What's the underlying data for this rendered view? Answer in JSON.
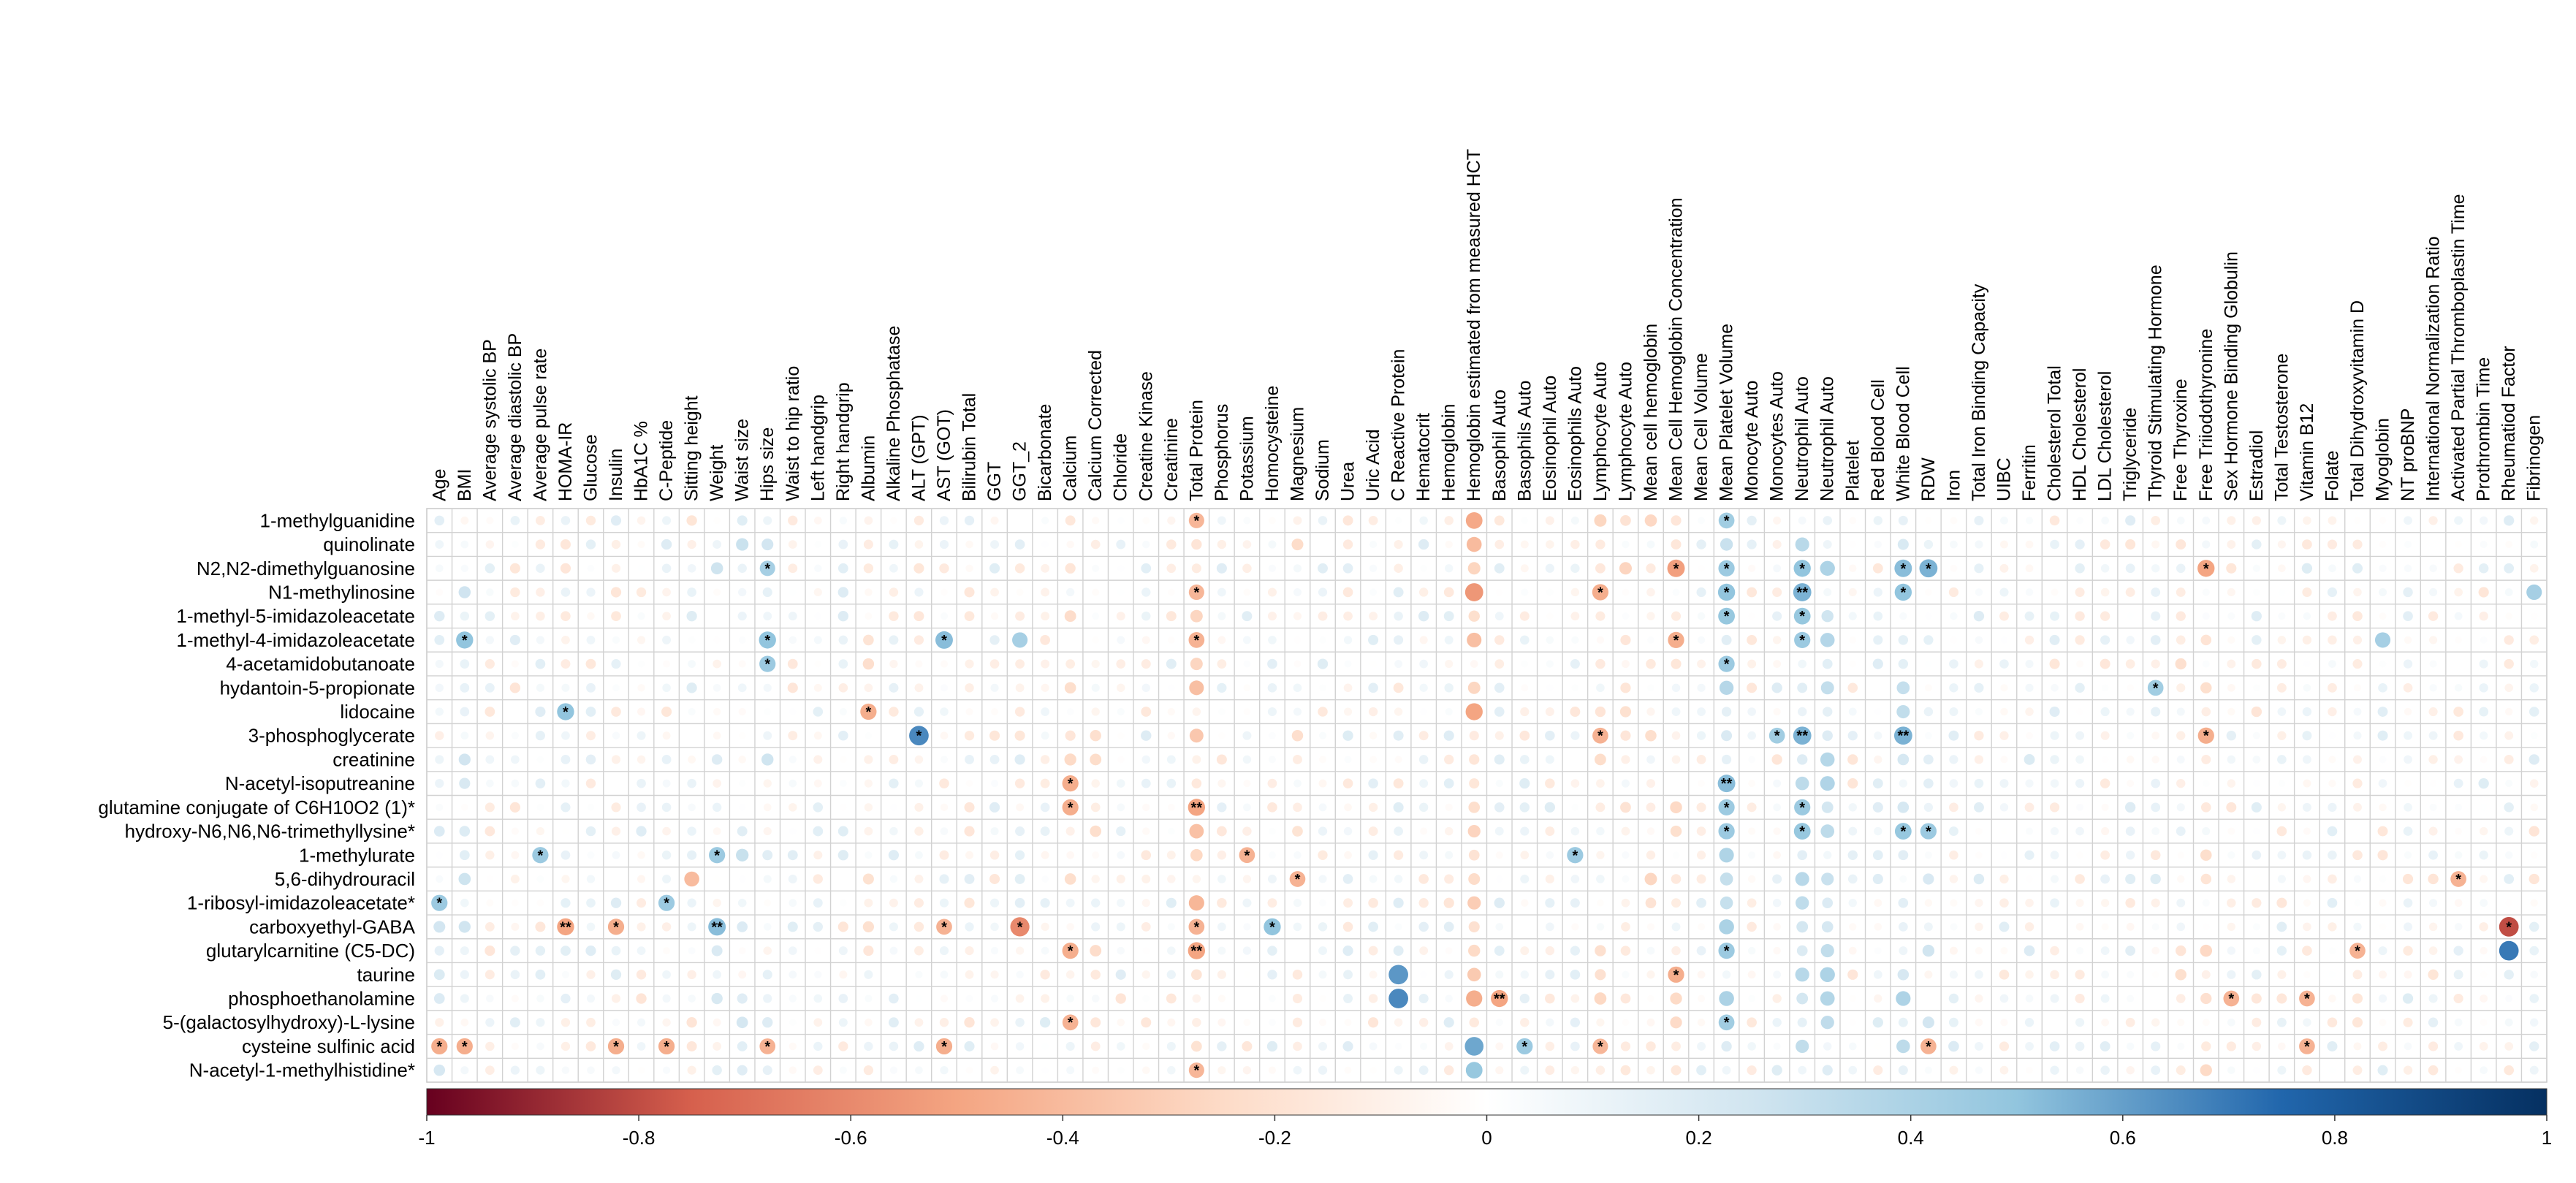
{
  "chart_data": {
    "type": "heatmap",
    "subtype": "correlation-dot-matrix",
    "title": "",
    "columns": [
      "Age",
      "BMI",
      "Average systolic BP",
      "Average diastolic BP",
      "Average pulse rate",
      "HOMA-IR",
      "Glucose",
      "Insulin",
      "HbA1C %",
      "C-Peptide",
      "Sitting height",
      "Weight",
      "Waist size",
      "Hips size",
      "Waist to hip ratio",
      "Left handgrip",
      "Right handgrip",
      "Albumin",
      "Alkaline Phosphatase",
      "ALT (GPT)",
      "AST (GOT)",
      "Bilirubin Total",
      "GGT",
      "GGT_2",
      "Bicarbonate",
      "Calcium",
      "Calcium Corrected",
      "Chloride",
      "Creatine Kinase",
      "Creatinine",
      "Total Protein",
      "Phosphorus",
      "Potassium",
      "Homocysteine",
      "Magnesium",
      "Sodium",
      "Urea",
      "Uric Acid",
      "C Reactive Protein",
      "Hematocrit",
      "Hemoglobin",
      "Hemoglobin estimated from measured HCT",
      "Basophil Auto",
      "Basophils Auto",
      "Eosinophil Auto",
      "Eosinophils Auto",
      "Lymphocyte Auto",
      "Lymphocyte Auto",
      "Mean cell hemoglobin",
      "Mean Cell Hemoglobin Concentration",
      "Mean Cell Volume",
      "Mean Platelet Volume",
      "Monocyte Auto",
      "Monocytes Auto",
      "Neutrophil Auto",
      "Neutrophil Auto",
      "Platelet",
      "Red Blood Cell",
      "White Blood Cell",
      "RDW",
      "Iron",
      "Total Iron Binding Capacity",
      "UIBC",
      "Ferritin",
      "Cholesterol Total",
      "HDL Cholesterol",
      "LDL Cholesterol",
      "Triglyceride",
      "Thyroid Stimulating Hormone",
      "Free Thyroxine",
      "Free Triiodothyronine",
      "Sex Hormone Binding Globulin",
      "Estradiol",
      "Total  Testosterone",
      "Vitamin B12",
      "Folate",
      "Total  Dihydroxyvitamin D",
      "Myoglobin",
      "NT proBNP",
      "International Normalization Ratio",
      "Activated Partial Thromboplastin Time",
      "Prothrombin Time",
      "Rheumatiod Factor",
      "Fibrinogen"
    ],
    "rows": [
      "1-methylguanidine",
      "quinolinate",
      "N2,N2-dimethylguanosine",
      "N1-methylinosine",
      "1-methyl-5-imidazoleacetate",
      "1-methyl-4-imidazoleacetate",
      "4-acetamidobutanoate",
      "hydantoin-5-propionate",
      "lidocaine",
      "3-phosphoglycerate",
      "creatinine",
      "N-acetyl-isoputreanine",
      "glutamine conjugate of C6H10O2 (1)*",
      "hydroxy-N6,N6,N6-trimethyllysine*",
      "1-methylurate",
      "5,6-dihydrouracil",
      "1-ribosyl-imidazoleacetate*",
      "carboxyethyl-GABA",
      "glutarylcarnitine (C5-DC)",
      "taurine",
      "phosphoethanolamine",
      "5-(galactosylhydroxy)-L-lysine",
      "cysteine sulfinic acid",
      "N-acetyl-1-methylhistidine*"
    ],
    "value_range": [
      -1,
      1
    ],
    "colorbar": {
      "ticks": [
        -1,
        -0.8,
        -0.6,
        -0.4,
        -0.2,
        0,
        0.2,
        0.4,
        0.6,
        0.8,
        1
      ],
      "tick_labels": [
        "-1",
        "-0.8",
        "-0.6",
        "-0.4",
        "-0.2",
        "0",
        "0.2",
        "0.4",
        "0.6",
        "0.8",
        "1"
      ],
      "colors": [
        "#67001f",
        "#d6604d",
        "#f4a582",
        "#fddbc7",
        "#ffffff",
        "#d1e5f0",
        "#92c5de",
        "#2166ac",
        "#053061"
      ],
      "placement": "bottom"
    },
    "column_effects": {
      "Total Protein": -0.3,
      "Hemoglobin estimated from measured HCT": -0.28,
      "Lymphocyte Auto": -0.12,
      "Mean cell hemoglobin": -0.12,
      "Mean Cell Hemoglobin Concentration": -0.1,
      "Mean Platelet Volume": 0.3,
      "Neutrophil Auto": 0.28,
      "White Blood Cell": 0.26,
      "RDW": 0.14,
      "Calcium": -0.1,
      "Calcium Corrected": -0.08,
      "Albumin": -0.08,
      "Free Triiodothyronine": -0.14,
      "Free Thyroxine": -0.06,
      "Magnesium": -0.08,
      "Waist size": 0.14,
      "Hips size": 0.12,
      "BMI": 0.12,
      "Weight": 0.1,
      "Age": 0.08,
      "Iron": 0.02,
      "Total Iron Binding Capacity": 0.02,
      "UIBC": 0.02,
      "Ferritin": 0.02
    },
    "highlights": [
      {
        "row": "1-methylguanidine",
        "col": "Total Protein",
        "r": -0.42,
        "sig": "*"
      },
      {
        "row": "1-methylguanidine",
        "col": "Hemoglobin estimated from measured HCT",
        "r": -0.48
      },
      {
        "row": "1-methylguanidine",
        "col": "Mean Platelet Volume",
        "r": 0.44,
        "sig": "*"
      },
      {
        "row": "quinolinate",
        "col": "Hemoglobin estimated from measured HCT",
        "r": -0.4
      },
      {
        "row": "N2,N2-dimethylguanosine",
        "col": "Hips size",
        "r": 0.42,
        "sig": "*"
      },
      {
        "row": "N2,N2-dimethylguanosine",
        "col": "Mean Cell Hemoglobin Concentration",
        "r": -0.52,
        "sig": "*"
      },
      {
        "row": "N2,N2-dimethylguanosine",
        "col": "Mean Platelet Volume",
        "r": 0.46,
        "sig": "*"
      },
      {
        "row": "N2,N2-dimethylguanosine",
        "col": "Neutrophil Auto",
        "r": 0.5,
        "sig": "*"
      },
      {
        "row": "N2,N2-dimethylguanosine",
        "col": "White Blood Cell",
        "r": 0.52,
        "sig": "*"
      },
      {
        "row": "N2,N2-dimethylguanosine",
        "col": "RDW",
        "r": 0.55,
        "sig": "*"
      },
      {
        "row": "N2,N2-dimethylguanosine",
        "col": "Free Triiodothyronine",
        "r": -0.5,
        "sig": "*"
      },
      {
        "row": "N1-methylinosine",
        "col": "Total Protein",
        "r": -0.42,
        "sig": "*"
      },
      {
        "row": "N1-methylinosine",
        "col": "Hemoglobin estimated from measured HCT",
        "r": -0.55
      },
      {
        "row": "N1-methylinosine",
        "col": "Lymphocyte Auto",
        "r": -0.46,
        "sig": "*"
      },
      {
        "row": "N1-methylinosine",
        "col": "Mean Platelet Volume",
        "r": 0.5,
        "sig": "*"
      },
      {
        "row": "N1-methylinosine",
        "col": "Neutrophil Auto",
        "r": 0.55,
        "sig": "**"
      },
      {
        "row": "N1-methylinosine",
        "col": "White Blood Cell",
        "r": 0.5,
        "sig": "*"
      },
      {
        "row": "N1-methylinosine",
        "col": "Fibrinogen",
        "r": 0.42
      },
      {
        "row": "1-methyl-5-imidazoleacetate",
        "col": "Mean Platelet Volume",
        "r": 0.48,
        "sig": "*"
      },
      {
        "row": "1-methyl-5-imidazoleacetate",
        "col": "Neutrophil Auto",
        "r": 0.48,
        "sig": "*"
      },
      {
        "row": "1-methyl-4-imidazoleacetate",
        "col": "BMI",
        "r": 0.5,
        "sig": "*"
      },
      {
        "row": "1-methyl-4-imidazoleacetate",
        "col": "Hips size",
        "r": 0.5,
        "sig": "*"
      },
      {
        "row": "1-methyl-4-imidazoleacetate",
        "col": "AST (GOT)",
        "r": 0.52,
        "sig": "*"
      },
      {
        "row": "1-methyl-4-imidazoleacetate",
        "col": "GGT_2",
        "r": 0.42
      },
      {
        "row": "1-methyl-4-imidazoleacetate",
        "col": "Total Protein",
        "r": -0.44,
        "sig": "*"
      },
      {
        "row": "1-methyl-4-imidazoleacetate",
        "col": "Mean Cell Hemoglobin Concentration",
        "r": -0.46,
        "sig": "*"
      },
      {
        "row": "1-methyl-4-imidazoleacetate",
        "col": "Neutrophil Auto",
        "r": 0.46,
        "sig": "*"
      },
      {
        "row": "1-methyl-4-imidazoleacetate",
        "col": "Myoglobin",
        "r": 0.42
      },
      {
        "row": "4-acetamidobutanoate",
        "col": "Hips size",
        "r": 0.46,
        "sig": "*"
      },
      {
        "row": "4-acetamidobutanoate",
        "col": "Mean Platelet Volume",
        "r": 0.46,
        "sig": "*"
      },
      {
        "row": "hydantoin-5-propionate",
        "col": "Thyroid Stimulating Hormone",
        "r": 0.44,
        "sig": "*"
      },
      {
        "row": "lidocaine",
        "col": "HOMA-IR",
        "r": 0.5,
        "sig": "*"
      },
      {
        "row": "lidocaine",
        "col": "Albumin",
        "r": -0.46,
        "sig": "*"
      },
      {
        "row": "lidocaine",
        "col": "Hemoglobin estimated from measured HCT",
        "r": -0.5
      },
      {
        "row": "3-phosphoglycerate",
        "col": "ALT (GPT)",
        "r": 0.66,
        "sig": "*"
      },
      {
        "row": "3-phosphoglycerate",
        "col": "Lymphocyte Auto",
        "r": -0.44,
        "sig": "*"
      },
      {
        "row": "3-phosphoglycerate",
        "col": "Monocytes Auto",
        "r": 0.44,
        "sig": "*"
      },
      {
        "row": "3-phosphoglycerate",
        "col": "Neutrophil Auto",
        "r": 0.55,
        "sig": "**"
      },
      {
        "row": "3-phosphoglycerate",
        "col": "White Blood Cell",
        "r": 0.55,
        "sig": "**"
      },
      {
        "row": "3-phosphoglycerate",
        "col": "Free Triiodothyronine",
        "r": -0.46,
        "sig": "*"
      },
      {
        "row": "N-acetyl-isoputreanine",
        "col": "Calcium",
        "r": -0.46,
        "sig": "*"
      },
      {
        "row": "N-acetyl-isoputreanine",
        "col": "Mean Platelet Volume",
        "r": 0.52,
        "sig": "**"
      },
      {
        "row": "glutamine conjugate of C6H10O2 (1)*",
        "col": "Calcium",
        "r": -0.46,
        "sig": "*"
      },
      {
        "row": "glutamine conjugate of C6H10O2 (1)*",
        "col": "Total Protein",
        "r": -0.5,
        "sig": "**"
      },
      {
        "row": "glutamine conjugate of C6H10O2 (1)*",
        "col": "Mean Platelet Volume",
        "r": 0.46,
        "sig": "*"
      },
      {
        "row": "glutamine conjugate of C6H10O2 (1)*",
        "col": "Neutrophil Auto",
        "r": 0.46,
        "sig": "*"
      },
      {
        "row": "hydroxy-N6,N6,N6-trimethyllysine*",
        "col": "Mean Platelet Volume",
        "r": 0.46,
        "sig": "*"
      },
      {
        "row": "hydroxy-N6,N6,N6-trimethyllysine*",
        "col": "Neutrophil Auto",
        "r": 0.48,
        "sig": "*"
      },
      {
        "row": "hydroxy-N6,N6,N6-trimethyllysine*",
        "col": "White Blood Cell",
        "r": 0.48,
        "sig": "*"
      },
      {
        "row": "hydroxy-N6,N6,N6-trimethyllysine*",
        "col": "RDW",
        "r": 0.46,
        "sig": "*"
      },
      {
        "row": "1-methylurate",
        "col": "Average pulse rate",
        "r": 0.46,
        "sig": "*"
      },
      {
        "row": "1-methylurate",
        "col": "Weight",
        "r": 0.46,
        "sig": "*"
      },
      {
        "row": "1-methylurate",
        "col": "Potassium",
        "r": -0.44,
        "sig": "*"
      },
      {
        "row": "1-methylurate",
        "col": "Eosinophils Auto",
        "r": 0.46,
        "sig": "*"
      },
      {
        "row": "5,6-dihydrouracil",
        "col": "Sitting height",
        "r": -0.4
      },
      {
        "row": "5,6-dihydrouracil",
        "col": "Magnesium",
        "r": -0.44,
        "sig": "*"
      },
      {
        "row": "5,6-dihydrouracil",
        "col": "Activated Partial Thromboplastin Time",
        "r": -0.44,
        "sig": "*"
      },
      {
        "row": "1-ribosyl-imidazoleacetate*",
        "col": "Age",
        "r": 0.46,
        "sig": "*"
      },
      {
        "row": "1-ribosyl-imidazoleacetate*",
        "col": "C-Peptide",
        "r": 0.46,
        "sig": "*"
      },
      {
        "row": "carboxyethyl-GABA",
        "col": "HOMA-IR",
        "r": -0.5,
        "sig": "**"
      },
      {
        "row": "carboxyethyl-GABA",
        "col": "Insulin",
        "r": -0.46,
        "sig": "*"
      },
      {
        "row": "carboxyethyl-GABA",
        "col": "Weight",
        "r": 0.52,
        "sig": "**"
      },
      {
        "row": "carboxyethyl-GABA",
        "col": "AST (GOT)",
        "r": -0.44,
        "sig": "*"
      },
      {
        "row": "carboxyethyl-GABA",
        "col": "GGT_2",
        "r": -0.6,
        "sig": "*"
      },
      {
        "row": "carboxyethyl-GABA",
        "col": "Total Protein",
        "r": -0.44,
        "sig": "*"
      },
      {
        "row": "carboxyethyl-GABA",
        "col": "Homocysteine",
        "r": 0.5,
        "sig": "*"
      },
      {
        "row": "carboxyethyl-GABA",
        "col": "Rheumatiod Factor",
        "r": -0.8,
        "sig": "*"
      },
      {
        "row": "glutarylcarnitine (C5-DC)",
        "col": "Calcium",
        "r": -0.46,
        "sig": "*"
      },
      {
        "row": "glutarylcarnitine (C5-DC)",
        "col": "Total Protein",
        "r": -0.5,
        "sig": "**"
      },
      {
        "row": "glutarylcarnitine (C5-DC)",
        "col": "Mean Platelet Volume",
        "r": 0.46,
        "sig": "*"
      },
      {
        "row": "glutarylcarnitine (C5-DC)",
        "col": "Total  Dihydroxyvitamin D",
        "r": -0.44,
        "sig": "*"
      },
      {
        "row": "glutarylcarnitine (C5-DC)",
        "col": "Rheumatiod Factor",
        "r": 0.7
      },
      {
        "row": "taurine",
        "col": "C Reactive Protein",
        "r": 0.62
      },
      {
        "row": "taurine",
        "col": "Mean Cell Hemoglobin Concentration",
        "r": -0.46,
        "sig": "*"
      },
      {
        "row": "phosphoethanolamine",
        "col": "C Reactive Protein",
        "r": 0.66
      },
      {
        "row": "phosphoethanolamine",
        "col": "Hemoglobin estimated from measured HCT",
        "r": -0.46
      },
      {
        "row": "phosphoethanolamine",
        "col": "Basophil Auto",
        "r": -0.5,
        "sig": "**"
      },
      {
        "row": "phosphoethanolamine",
        "col": "Sex Hormone Binding Globulin",
        "r": -0.44,
        "sig": "*"
      },
      {
        "row": "phosphoethanolamine",
        "col": "Vitamin B12",
        "r": -0.44,
        "sig": "*"
      },
      {
        "row": "5-(galactosylhydroxy)-L-lysine",
        "col": "Calcium",
        "r": -0.44,
        "sig": "*"
      },
      {
        "row": "5-(galactosylhydroxy)-L-lysine",
        "col": "Mean Platelet Volume",
        "r": 0.44,
        "sig": "*"
      },
      {
        "row": "cysteine sulfinic acid",
        "col": "Age",
        "r": -0.46,
        "sig": "*"
      },
      {
        "row": "cysteine sulfinic acid",
        "col": "BMI",
        "r": -0.46,
        "sig": "*"
      },
      {
        "row": "cysteine sulfinic acid",
        "col": "Insulin",
        "r": -0.46,
        "sig": "*"
      },
      {
        "row": "cysteine sulfinic acid",
        "col": "C-Peptide",
        "r": -0.46,
        "sig": "*"
      },
      {
        "row": "cysteine sulfinic acid",
        "col": "Hips size",
        "r": -0.44,
        "sig": "*"
      },
      {
        "row": "cysteine sulfinic acid",
        "col": "AST (GOT)",
        "r": -0.46,
        "sig": "*"
      },
      {
        "row": "cysteine sulfinic acid",
        "col": "Hemoglobin estimated from measured HCT",
        "r": 0.58
      },
      {
        "row": "cysteine sulfinic acid",
        "col": "Basophils Auto",
        "r": 0.46,
        "sig": "*"
      },
      {
        "row": "cysteine sulfinic acid",
        "col": "Lymphocyte Auto",
        "r": -0.42,
        "sig": "*"
      },
      {
        "row": "cysteine sulfinic acid",
        "col": "RDW",
        "r": -0.44,
        "sig": "*"
      },
      {
        "row": "cysteine sulfinic acid",
        "col": "Vitamin B12",
        "r": -0.44,
        "sig": "*"
      },
      {
        "row": "N-acetyl-1-methylhistidine*",
        "col": "Total Protein",
        "r": -0.42,
        "sig": "*"
      },
      {
        "row": "N-acetyl-1-methylhistidine*",
        "col": "Hemoglobin estimated from measured HCT",
        "r": 0.48
      }
    ]
  }
}
